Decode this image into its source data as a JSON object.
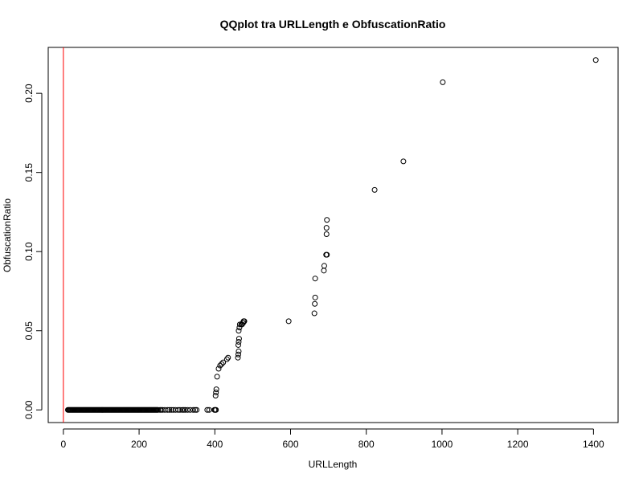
{
  "chart_data": {
    "type": "scatter",
    "title": "QQplot tra URLLength e ObfuscationRatio",
    "xlabel": "URLLength",
    "ylabel": "ObfuscationRatio",
    "xlim": [
      -40,
      1465
    ],
    "ylim": [
      -0.008,
      0.229
    ],
    "xticks": [
      0,
      200,
      400,
      600,
      800,
      1000,
      1200,
      1400
    ],
    "yticks": [
      0.0,
      0.05,
      0.1,
      0.15,
      0.2
    ],
    "ytick_labels": [
      "0.00",
      "0.05",
      "0.10",
      "0.15",
      "0.20"
    ],
    "grid": false,
    "legend": "none",
    "reference_line": {
      "type": "vertical",
      "x": 0,
      "color": "#ff0000"
    },
    "marker": {
      "shape": "open-circle",
      "color": "#000000"
    },
    "zero_run": {
      "x_from": 12,
      "x_to": 250,
      "step": 2,
      "y": 0
    },
    "points": [
      [
        255,
        0
      ],
      [
        258,
        0
      ],
      [
        262,
        0
      ],
      [
        268,
        0
      ],
      [
        275,
        0
      ],
      [
        280,
        0
      ],
      [
        285,
        0
      ],
      [
        290,
        0
      ],
      [
        296,
        0
      ],
      [
        303,
        0
      ],
      [
        308,
        0
      ],
      [
        314,
        0
      ],
      [
        318,
        0
      ],
      [
        322,
        0
      ],
      [
        328,
        0
      ],
      [
        335,
        0
      ],
      [
        343,
        0
      ],
      [
        348,
        0
      ],
      [
        352,
        0
      ],
      [
        380,
        0
      ],
      [
        385,
        0
      ],
      [
        399,
        0
      ],
      [
        401,
        0
      ],
      [
        403,
        0
      ],
      [
        402,
        0.009
      ],
      [
        403,
        0.011
      ],
      [
        404,
        0.013
      ],
      [
        406,
        0.021
      ],
      [
        410,
        0.026
      ],
      [
        414,
        0.028
      ],
      [
        418,
        0.029
      ],
      [
        422,
        0.03
      ],
      [
        432,
        0.032
      ],
      [
        435,
        0.033
      ],
      [
        461,
        0.033
      ],
      [
        462,
        0.035
      ],
      [
        463,
        0.037
      ],
      [
        462,
        0.041
      ],
      [
        463,
        0.043
      ],
      [
        464,
        0.045
      ],
      [
        463,
        0.05
      ],
      [
        465,
        0.052
      ],
      [
        466,
        0.054
      ],
      [
        470,
        0.054
      ],
      [
        472,
        0.054
      ],
      [
        474,
        0.055
      ],
      [
        475,
        0.055
      ],
      [
        476,
        0.056
      ],
      [
        477,
        0.056
      ],
      [
        478,
        0.056
      ],
      [
        595,
        0.056
      ],
      [
        663,
        0.061
      ],
      [
        664,
        0.067
      ],
      [
        665,
        0.071
      ],
      [
        665,
        0.083
      ],
      [
        688,
        0.088
      ],
      [
        689,
        0.091
      ],
      [
        694,
        0.098
      ],
      [
        696,
        0.098
      ],
      [
        695,
        0.111
      ],
      [
        695,
        0.115
      ],
      [
        696,
        0.12
      ],
      [
        822,
        0.139
      ],
      [
        898,
        0.157
      ],
      [
        1002,
        0.207
      ],
      [
        1406,
        0.221
      ]
    ]
  }
}
